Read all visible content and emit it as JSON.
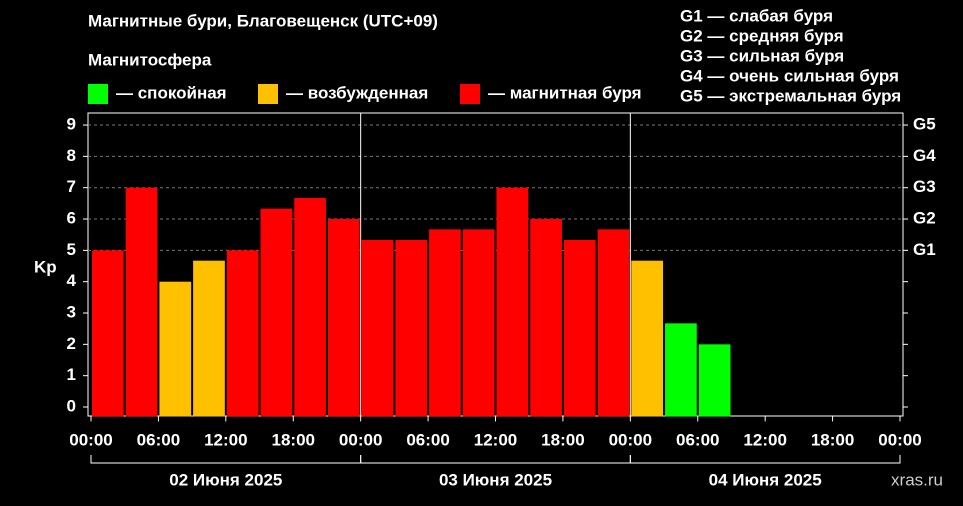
{
  "chart_data": {
    "type": "bar",
    "title": "Магнитные бури, Благовещенск (UTC+09)",
    "subtitle": "Магнитосфера",
    "legend": [
      {
        "name": "— спокойная",
        "color": "#00ff00"
      },
      {
        "name": "— возбужденная",
        "color": "#ffc000"
      },
      {
        "name": "— магнитная буря",
        "color": "#ff0000"
      }
    ],
    "scale_legend": [
      "G1 — слабая буря",
      "G2 — средняя буря",
      "G3 — сильная буря",
      "G4 — очень сильная буря",
      "G5 — экстремальная буря"
    ],
    "y_label": "Kp",
    "x": [
      0,
      3,
      6,
      9,
      12,
      15,
      18,
      21,
      24,
      27,
      30,
      33,
      36,
      39,
      42,
      45,
      48,
      51,
      54
    ],
    "values": [
      5,
      7,
      4,
      4.67,
      5,
      6.33,
      6.67,
      6,
      5.33,
      5.33,
      5.67,
      5.67,
      7,
      6,
      5.33,
      5.67,
      4.67,
      2.67,
      2
    ],
    "colors": [
      "#ff0000",
      "#ff0000",
      "#ffc000",
      "#ffc000",
      "#ff0000",
      "#ff0000",
      "#ff0000",
      "#ff0000",
      "#ff0000",
      "#ff0000",
      "#ff0000",
      "#ff0000",
      "#ff0000",
      "#ff0000",
      "#ff0000",
      "#ff0000",
      "#ffc000",
      "#00ff00",
      "#00ff00"
    ],
    "xlim": [
      0,
      72
    ],
    "xticks": [
      {
        "value": 0,
        "label": "00:00"
      },
      {
        "value": 6,
        "label": "06:00"
      },
      {
        "value": 12,
        "label": "12:00"
      },
      {
        "value": 18,
        "label": "18:00"
      },
      {
        "value": 24,
        "label": "00:00"
      },
      {
        "value": 30,
        "label": "06:00"
      },
      {
        "value": 36,
        "label": "12:00"
      },
      {
        "value": 42,
        "label": "18:00"
      },
      {
        "value": 48,
        "label": "00:00"
      },
      {
        "value": 54,
        "label": "06:00"
      },
      {
        "value": 60,
        "label": "12:00"
      },
      {
        "value": 66,
        "label": "18:00"
      },
      {
        "value": 72,
        "label": "00:00"
      }
    ],
    "days": [
      "02 Июня 2025",
      "03 Июня 2025",
      "04 Июня 2025"
    ],
    "ylim": [
      -0.3,
      9.4
    ],
    "yticks": [
      0,
      1,
      2,
      3,
      4,
      5,
      6,
      7,
      8,
      9
    ],
    "y2lim": [
      -0.3,
      9.4
    ],
    "y2ticks": [
      {
        "value": 5,
        "label": "G1"
      },
      {
        "value": 6,
        "label": "G2"
      },
      {
        "value": 7,
        "label": "G3"
      },
      {
        "value": 8,
        "label": "G4"
      },
      {
        "value": 9,
        "label": "G5"
      }
    ],
    "grid": true,
    "watermark": "xras.ru"
  }
}
